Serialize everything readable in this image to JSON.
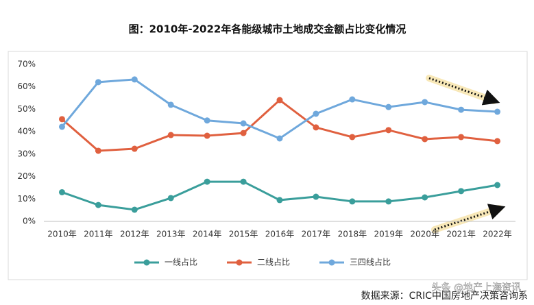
{
  "chart_data": {
    "type": "line",
    "title": "图：2010年-2022年各能级城市土地成交金额占比变化情况",
    "categories": [
      "2010年",
      "2011年",
      "2012年",
      "2013年",
      "2014年",
      "2015年",
      "2016年",
      "2017年",
      "2018年",
      "2019年",
      "2020年",
      "2021年",
      "2022年"
    ],
    "series": [
      {
        "name": "一线占比",
        "color": "#3a9e9b",
        "values": [
          13.0,
          7.3,
          5.2,
          10.4,
          17.7,
          17.7,
          9.5,
          11.0,
          8.9,
          8.9,
          10.7,
          13.5,
          16.2
        ]
      },
      {
        "name": "二线占比",
        "color": "#e0603f",
        "values": [
          45.6,
          31.5,
          32.4,
          38.5,
          38.2,
          39.4,
          54.1,
          41.9,
          37.6,
          40.7,
          36.7,
          37.6,
          35.8
        ]
      },
      {
        "name": "三四线占比",
        "color": "#6fa8dc",
        "values": [
          42.2,
          62.1,
          63.3,
          52.0,
          45.0,
          43.7,
          37.0,
          48.0,
          54.4,
          51.0,
          53.2,
          49.8,
          48.9
        ]
      }
    ],
    "ylim": [
      0,
      70
    ],
    "yticks": [
      {
        "value": 0,
        "label": "0%"
      },
      {
        "value": 10,
        "label": "10%"
      },
      {
        "value": 20,
        "label": "20%"
      },
      {
        "value": 30,
        "label": "30%"
      },
      {
        "value": 40,
        "label": "40%"
      },
      {
        "value": 50,
        "label": "50%"
      },
      {
        "value": 60,
        "label": "60%"
      },
      {
        "value": 70,
        "label": "70%"
      }
    ],
    "grid": false,
    "legend": "bottom",
    "source": "数据来源：CRIC中国房地产决策咨询系",
    "watermark": "头条 @地产上海资讯"
  }
}
